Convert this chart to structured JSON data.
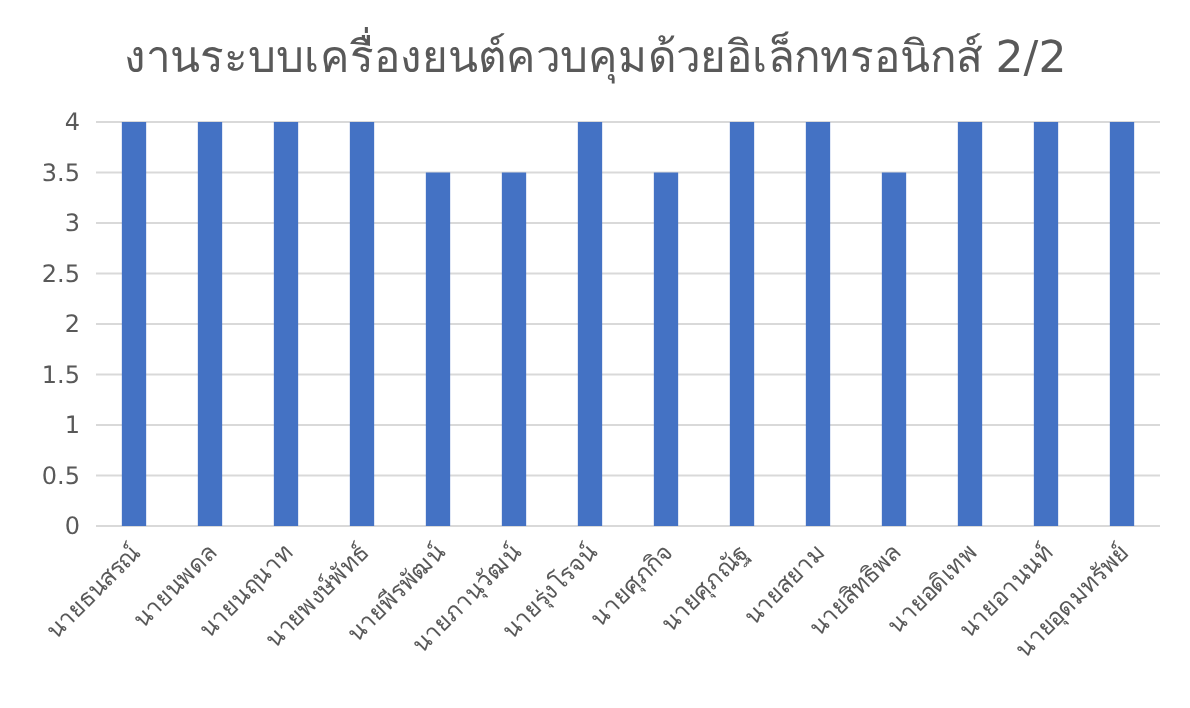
{
  "chart_data": {
    "type": "bar",
    "title": "งานระบบเครื่องยนต์ควบคุมด้วยอิเล็กทรอนิกส์ 2/2",
    "categories": [
      "นายธนสรณ์",
      "นายนพดล",
      "นายนฤนาท",
      "นายพงษ์พัทธ์",
      "นายพีรพัฒน์",
      "นายภานุวัฒน์",
      "นายรุ่งโรจน์",
      "นายศุภกิจ",
      "นายศุภณัฐ",
      "นายสยาม",
      "นายสิทธิพล",
      "นายอดิเทพ",
      "นายอานนท์",
      "นายอุดมทรัพย์"
    ],
    "values": [
      4,
      4,
      4,
      4,
      3.5,
      3.5,
      4,
      3.5,
      4,
      4,
      3.5,
      4,
      4,
      4
    ],
    "color": "#4472c4",
    "ylim": [
      0,
      4
    ],
    "yticks": [
      0,
      0.5,
      1,
      1.5,
      2,
      2.5,
      3,
      3.5,
      4
    ],
    "grid": "y"
  }
}
